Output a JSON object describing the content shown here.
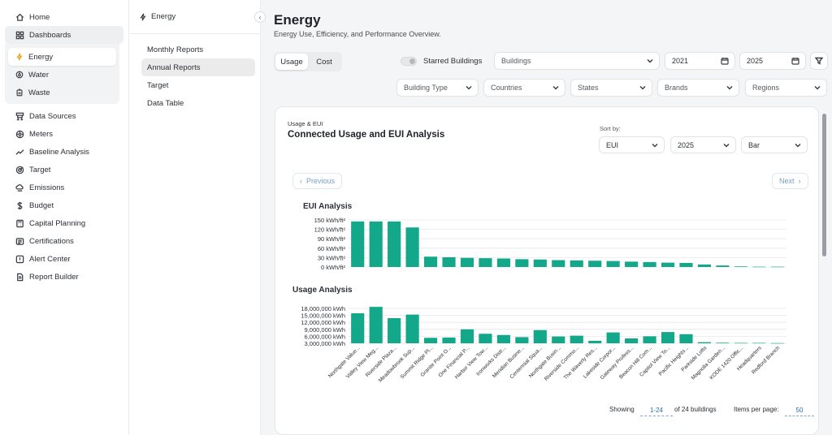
{
  "nav": {
    "items": [
      {
        "label": "Home",
        "icon": "home-icon"
      },
      {
        "label": "Dashboards",
        "icon": "dashboard-icon"
      },
      {
        "label": "Data Sources",
        "icon": "data-sources-icon"
      },
      {
        "label": "Meters",
        "icon": "meter-icon"
      },
      {
        "label": "Baseline Analysis",
        "icon": "trend-icon"
      },
      {
        "label": "Target",
        "icon": "target-icon"
      },
      {
        "label": "Emissions",
        "icon": "co2-cloud-icon"
      },
      {
        "label": "Budget",
        "icon": "dollar-icon"
      },
      {
        "label": "Capital Planning",
        "icon": "calculator-icon"
      },
      {
        "label": "Certifications",
        "icon": "certificate-icon"
      },
      {
        "label": "Alert Center",
        "icon": "alert-icon"
      },
      {
        "label": "Report Builder",
        "icon": "report-icon"
      }
    ],
    "dashboard_sub": [
      {
        "label": "Energy",
        "icon": "lightning-icon"
      },
      {
        "label": "Water",
        "icon": "water-drop-icon"
      },
      {
        "label": "Waste",
        "icon": "bin-icon"
      }
    ]
  },
  "subpanel": {
    "title": "Energy",
    "items": [
      "Monthly Reports",
      "Annual Reports",
      "Target",
      "Data Table"
    ]
  },
  "header": {
    "title": "Energy",
    "subtitle": "Energy Use, Efficiency, and Performance Overview."
  },
  "toggle": {
    "usage": "Usage",
    "cost": "Cost"
  },
  "filters": {
    "starred": "Starred Buildings",
    "buildings": "Buildings",
    "year_from": "2021",
    "year_to": "2025",
    "building_type": "Building Type",
    "countries": "Countries",
    "states": "States",
    "brands": "Brands",
    "regions": "Regions"
  },
  "card": {
    "eyebrow": "Usage & EUI",
    "title": "Connected Usage and EUI Analysis",
    "sort_label": "Sort by:",
    "sort_metric": "EUI",
    "sort_year": "2025",
    "chart_kind": "Bar",
    "previous": "Previous",
    "next": "Next",
    "showing": "Showing",
    "range": "1-24",
    "of_total": "of 24 buildings",
    "ipp_label": "Items per page:",
    "ipp_value": "50"
  },
  "chart_data": [
    {
      "type": "bar",
      "title": "EUI Analysis",
      "ylabel": "",
      "yticks": [
        "0 kWh/ft²",
        "30 kWh/ft²",
        "60 kWh/ft²",
        "90 kWh/ft²",
        "120 kWh/ft²",
        "150 kWh/ft²"
      ],
      "ylim": [
        0,
        150
      ],
      "color": "#14a88a",
      "values": [
        145,
        145,
        145,
        126,
        33,
        31,
        29,
        28,
        27,
        25,
        24,
        22,
        21,
        20,
        19,
        17,
        16,
        14,
        13,
        8,
        5,
        2,
        1,
        1
      ]
    },
    {
      "type": "bar",
      "title": "Usage Analysis",
      "ylabel": "",
      "yticks": [
        "3,000,000 kWh",
        "6,000,000 kWh",
        "9,000,000 kWh",
        "12,000,000 kWh",
        "15,000,000 kWh",
        "18,000,000 kWh"
      ],
      "ylim": [
        0,
        18000000
      ],
      "color": "#14a88a",
      "categories": [
        "Northgate Value...",
        "Valley View Meg...",
        "Riverside Plaza...",
        "Meadowbrook Sup...",
        "Summit Ridge Pl...",
        "Granite Point O...",
        "One Financial P...",
        "Harbor View Tow...",
        "Ironworks Distr...",
        "Meridian Busine...",
        "Centennial Squa...",
        "Northgate Busin...",
        "Riverside Commo...",
        "The Waverly Res...",
        "Lakeside Corpor...",
        "Gateway Profess...",
        "Beacon Hill Com...",
        "Capitol View To...",
        "Pacific Heights...",
        "Parkside Lofts",
        "Magnolia Garden...",
        "KODE 1420 Offic...",
        "Headquarters",
        "Redford Branch"
      ],
      "values": [
        15500000,
        18800000,
        13000000,
        14800000,
        2800000,
        3000000,
        7200000,
        4900000,
        4300000,
        3200000,
        6800000,
        3500000,
        3900000,
        1300000,
        5600000,
        2500000,
        3600000,
        5800000,
        4700000,
        600000,
        300000,
        200000,
        200000,
        100000
      ]
    }
  ]
}
